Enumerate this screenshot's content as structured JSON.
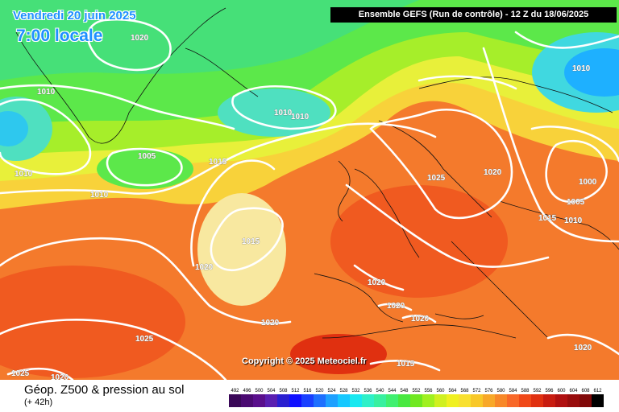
{
  "map": {
    "date_line": "Vendredi 20 juin 2025",
    "time_line": "7:00 locale",
    "header": "Ensemble GEFS  (Run de contrôle)   -  12 Z du 18/06/2025",
    "copyright": "Copyright © 2025 Meteociel.fr",
    "pressure_labels": [
      "1020",
      "1010",
      "1010",
      "1010",
      "1005",
      "1010",
      "1015",
      "1010",
      "1015",
      "1020",
      "1025",
      "1020",
      "1020",
      "1020",
      "1020",
      "1025",
      "1015",
      "1025",
      "1020",
      "1000",
      "1005",
      "1015",
      "1010",
      "1010",
      "1020",
      "1020",
      "1010"
    ]
  },
  "footer": {
    "title": "Géop. Z500 & pression au sol",
    "subtitle": "(+ 42h)"
  },
  "legend": {
    "values": [
      "492",
      "496",
      "500",
      "504",
      "508",
      "512",
      "516",
      "520",
      "524",
      "528",
      "532",
      "536",
      "540",
      "544",
      "548",
      "552",
      "556",
      "560",
      "564",
      "568",
      "572",
      "576",
      "580",
      "584",
      "588",
      "592",
      "596",
      "600",
      "604",
      "608",
      "612"
    ],
    "colors": [
      "#3a0858",
      "#4b0a72",
      "#5a0f8c",
      "#5a1fb0",
      "#2a1fd0",
      "#1010ff",
      "#1a40ff",
      "#1e70ff",
      "#1ea0ff",
      "#16c8ff",
      "#18e8f0",
      "#2ef0c8",
      "#38f0a0",
      "#40f070",
      "#48e840",
      "#70e820",
      "#a0f020",
      "#d0f020",
      "#f0f020",
      "#f8e030",
      "#f8c828",
      "#f8a828",
      "#f88828",
      "#f86828",
      "#f04818",
      "#e03010",
      "#c81c10",
      "#b01010",
      "#980c0c",
      "#800808",
      "#000000"
    ]
  }
}
